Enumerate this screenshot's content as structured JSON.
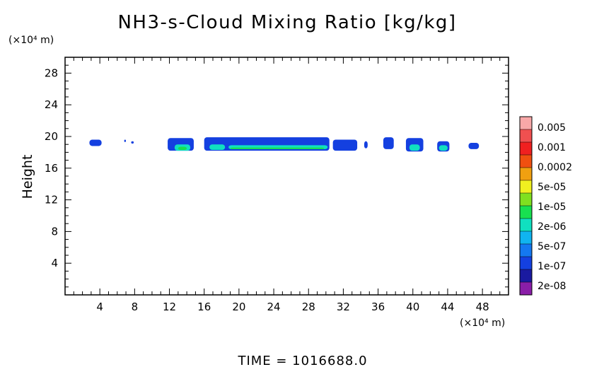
{
  "chart_data": {
    "type": "heatmap",
    "title": "NH3-s-Cloud Mixing Ratio [kg/kg]",
    "ylabel": "Height",
    "y_unit": "(×10⁴ m)",
    "x_unit": "(×10⁴ m)",
    "footer": "TIME = 1016688.0",
    "xlim": [
      0,
      51
    ],
    "ylim": [
      0,
      30
    ],
    "x_ticks": [
      4,
      8,
      12,
      16,
      20,
      24,
      28,
      32,
      36,
      40,
      44,
      48
    ],
    "y_ticks": [
      4,
      8,
      12,
      16,
      20,
      24,
      28
    ],
    "colorbar": {
      "labels": [
        "0.005",
        "0.001",
        "0.0002",
        "5e-05",
        "1e-05",
        "2e-06",
        "5e-07",
        "1e-07",
        "2e-08"
      ],
      "colors": [
        "#8a1ea8",
        "#1a1aa0",
        "#1440e0",
        "#1478f0",
        "#10b4f0",
        "#10e0c0",
        "#18e050",
        "#80e020",
        "#f0f020",
        "#f0a010",
        "#f05010",
        "#f02020",
        "#f05050",
        "#f8a8a8"
      ]
    },
    "regions": [
      {
        "x": [
          2.8,
          4.2
        ],
        "y": [
          18.8,
          19.6
        ],
        "level": 2
      },
      {
        "x": [
          6.8,
          7.0
        ],
        "y": [
          19.3,
          19.6
        ],
        "level": 2
      },
      {
        "x": [
          7.6,
          7.9
        ],
        "y": [
          19.1,
          19.4
        ],
        "level": 2
      },
      {
        "x": [
          11.8,
          14.8
        ],
        "y": [
          18.2,
          19.8
        ],
        "level": 2
      },
      {
        "x": [
          12.6,
          14.4
        ],
        "y": [
          18.2,
          19.0
        ],
        "level": 5
      },
      {
        "x": [
          13.0,
          14.0
        ],
        "y": [
          18.3,
          18.7
        ],
        "level": 6
      },
      {
        "x": [
          16.0,
          30.4
        ],
        "y": [
          18.2,
          19.9
        ],
        "level": 2
      },
      {
        "x": [
          16.6,
          18.4
        ],
        "y": [
          18.3,
          19.0
        ],
        "level": 5
      },
      {
        "x": [
          18.8,
          30.2
        ],
        "y": [
          18.4,
          18.9
        ],
        "level": 5
      },
      {
        "x": [
          19.0,
          29.8
        ],
        "y": [
          18.4,
          18.6
        ],
        "level": 6
      },
      {
        "x": [
          30.8,
          33.6
        ],
        "y": [
          18.2,
          19.6
        ],
        "level": 2
      },
      {
        "x": [
          34.4,
          34.8
        ],
        "y": [
          18.5,
          19.4
        ],
        "level": 2
      },
      {
        "x": [
          36.6,
          37.8
        ],
        "y": [
          18.4,
          19.9
        ],
        "level": 2
      },
      {
        "x": [
          39.2,
          41.2
        ],
        "y": [
          18.1,
          19.8
        ],
        "level": 2
      },
      {
        "x": [
          39.6,
          40.8
        ],
        "y": [
          18.2,
          19.0
        ],
        "level": 5
      },
      {
        "x": [
          42.8,
          44.2
        ],
        "y": [
          18.1,
          19.4
        ],
        "level": 2
      },
      {
        "x": [
          43.0,
          44.0
        ],
        "y": [
          18.2,
          18.9
        ],
        "level": 5
      },
      {
        "x": [
          46.4,
          47.6
        ],
        "y": [
          18.4,
          19.2
        ],
        "level": 2
      }
    ]
  }
}
